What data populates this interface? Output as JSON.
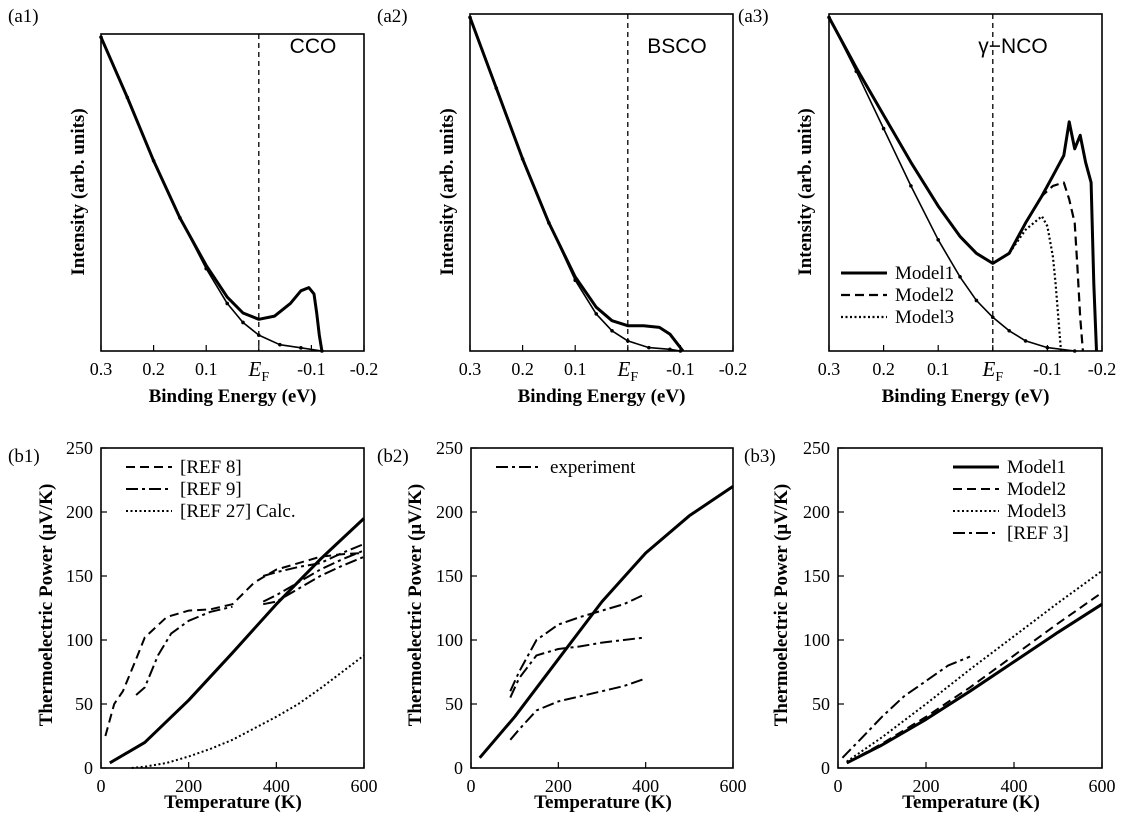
{
  "chart_data": [
    {
      "panel": "(a1)",
      "type": "line",
      "annotation": "CCO",
      "xlabel": "Binding Energy (eV)",
      "ylabel": "Intensity (arb. units)",
      "xlim": [
        0.3,
        -0.2
      ],
      "ylim": [
        0,
        1
      ],
      "x_ticks": [
        "0.3",
        "0.2",
        "0.1",
        "E_F",
        "-0.1",
        "-0.2"
      ],
      "fermi_level": 0,
      "series": [
        {
          "style": "solid",
          "width": 3,
          "x": [
            0.3,
            0.25,
            0.2,
            0.15,
            0.1,
            0.06,
            0.03,
            0.0,
            -0.03,
            -0.06,
            -0.08,
            -0.095,
            -0.105,
            -0.11,
            -0.115,
            -0.12
          ],
          "y": [
            0.99,
            0.8,
            0.6,
            0.42,
            0.27,
            0.17,
            0.12,
            0.1,
            0.11,
            0.15,
            0.19,
            0.2,
            0.18,
            0.12,
            0.05,
            0.0
          ]
        },
        {
          "style": "exp",
          "width": 1.6,
          "x": [
            0.3,
            0.25,
            0.2,
            0.15,
            0.1,
            0.06,
            0.03,
            0.0,
            -0.04,
            -0.08,
            -0.12
          ],
          "y": [
            0.99,
            0.8,
            0.6,
            0.42,
            0.26,
            0.15,
            0.09,
            0.05,
            0.02,
            0.01,
            0.0
          ]
        }
      ]
    },
    {
      "panel": "(a2)",
      "type": "line",
      "annotation": "BSCO",
      "xlabel": "Binding Energy (eV)",
      "ylabel": "Intensity (arb. units)",
      "xlim": [
        0.3,
        -0.2
      ],
      "ylim": [
        0,
        1
      ],
      "x_ticks": [
        "0.3",
        "0.2",
        "0.1",
        "E_F",
        "-0.1",
        "-0.2"
      ],
      "fermi_level": 0,
      "series": [
        {
          "style": "solid",
          "width": 3,
          "x": [
            0.3,
            0.25,
            0.2,
            0.15,
            0.1,
            0.06,
            0.03,
            0.0,
            -0.03,
            -0.06,
            -0.08,
            -0.095,
            -0.105
          ],
          "y": [
            0.99,
            0.78,
            0.57,
            0.38,
            0.22,
            0.13,
            0.09,
            0.075,
            0.075,
            0.07,
            0.05,
            0.02,
            0.0
          ]
        },
        {
          "style": "exp",
          "width": 1.6,
          "x": [
            0.3,
            0.25,
            0.2,
            0.15,
            0.1,
            0.06,
            0.03,
            0.0,
            -0.04,
            -0.08,
            -0.1
          ],
          "y": [
            0.99,
            0.78,
            0.57,
            0.38,
            0.21,
            0.11,
            0.06,
            0.03,
            0.01,
            0.005,
            0.0
          ]
        }
      ]
    },
    {
      "panel": "(a3)",
      "type": "line",
      "annotation": "γ−NCO",
      "xlabel": "Binding Energy (eV)",
      "ylabel": "Intensity (arb. units)",
      "xlim": [
        0.3,
        -0.2
      ],
      "ylim": [
        0,
        1
      ],
      "x_ticks": [
        "0.3",
        "0.2",
        "0.1",
        "E_F",
        "-0.1",
        "-0.2"
      ],
      "fermi_level": 0,
      "legend": [
        "Model1",
        "Model2",
        "Model3"
      ],
      "series": [
        {
          "name": "Model1",
          "style": "solid",
          "width": 3,
          "x": [
            0.3,
            0.25,
            0.2,
            0.15,
            0.1,
            0.06,
            0.03,
            0.0,
            -0.03,
            -0.06,
            -0.09,
            -0.11,
            -0.13,
            -0.14,
            -0.15,
            -0.16,
            -0.17,
            -0.18,
            -0.185,
            -0.19
          ],
          "y": [
            0.99,
            0.84,
            0.7,
            0.56,
            0.43,
            0.34,
            0.29,
            0.26,
            0.29,
            0.38,
            0.46,
            0.52,
            0.58,
            0.68,
            0.6,
            0.64,
            0.56,
            0.5,
            0.2,
            0.0
          ]
        },
        {
          "name": "Model2",
          "style": "dashed",
          "width": 2.2,
          "x": [
            0.06,
            0.03,
            0.0,
            -0.03,
            -0.06,
            -0.09,
            -0.11,
            -0.13,
            -0.14,
            -0.15,
            -0.155,
            -0.16,
            -0.165
          ],
          "y": [
            0.34,
            0.29,
            0.26,
            0.29,
            0.38,
            0.46,
            0.49,
            0.5,
            0.45,
            0.38,
            0.25,
            0.1,
            0.0
          ]
        },
        {
          "name": "Model3",
          "style": "dotted",
          "width": 2.2,
          "x": [
            0.06,
            0.03,
            0.0,
            -0.03,
            -0.06,
            -0.09,
            -0.1,
            -0.11,
            -0.115,
            -0.12,
            -0.125
          ],
          "y": [
            0.34,
            0.29,
            0.26,
            0.29,
            0.36,
            0.4,
            0.37,
            0.28,
            0.2,
            0.1,
            0.0
          ]
        },
        {
          "style": "exp",
          "width": 1.6,
          "x": [
            0.3,
            0.25,
            0.2,
            0.15,
            0.1,
            0.06,
            0.03,
            0.0,
            -0.03,
            -0.06,
            -0.1,
            -0.15
          ],
          "y": [
            0.99,
            0.83,
            0.66,
            0.49,
            0.33,
            0.22,
            0.15,
            0.1,
            0.06,
            0.03,
            0.01,
            0.0
          ]
        }
      ]
    },
    {
      "panel": "(b1)",
      "type": "line",
      "xlabel": "Temperature (K)",
      "ylabel": "Thermoelectric Power  (μV/K)",
      "xlim": [
        0,
        600
      ],
      "ylim": [
        0,
        250
      ],
      "x_ticks": [
        "0",
        "200",
        "400",
        "600"
      ],
      "y_ticks": [
        "0",
        "50",
        "100",
        "150",
        "200",
        "250"
      ],
      "legend": [
        "[REF 8]",
        "[REF 9]",
        "[REF 27] Calc."
      ],
      "series": [
        {
          "style": "solid",
          "width": 3,
          "x": [
            20,
            100,
            200,
            300,
            400,
            500,
            600
          ],
          "y": [
            4,
            20,
            53,
            90,
            128,
            163,
            195
          ]
        },
        {
          "name": "[REF 8]",
          "style": "dashed",
          "width": 2,
          "x": [
            10,
            30,
            50,
            80,
            100,
            150,
            200,
            250,
            300,
            350,
            400,
            450,
            500,
            550,
            600
          ],
          "y": [
            25,
            50,
            60,
            85,
            102,
            118,
            123,
            124,
            128,
            145,
            155,
            160,
            165,
            167,
            168
          ]
        },
        {
          "name": "[REF 9]",
          "style": "dashdot",
          "width": 2,
          "x": [
            80,
            100,
            130,
            160,
            200,
            250,
            300
          ],
          "y": [
            57,
            63,
            88,
            105,
            115,
            122,
            126
          ]
        },
        {
          "name": "[REF 9]",
          "style": "dashdot",
          "width": 2,
          "x": [
            370,
            400,
            450,
            500,
            550,
            600
          ],
          "y": [
            150,
            153,
            157,
            160,
            168,
            175
          ]
        },
        {
          "name": "[REF 9]",
          "style": "dashdot",
          "width": 2,
          "x": [
            370,
            400,
            450,
            500,
            550,
            600
          ],
          "y": [
            130,
            135,
            145,
            155,
            163,
            170
          ]
        },
        {
          "name": "[REF 9]",
          "style": "dashdot",
          "width": 2,
          "x": [
            370,
            400,
            450,
            500,
            550,
            600
          ],
          "y": [
            128,
            130,
            140,
            150,
            158,
            165
          ]
        },
        {
          "name": "[REF 27] Calc.",
          "style": "dotted",
          "width": 2,
          "x": [
            70,
            100,
            150,
            200,
            250,
            300,
            350,
            400,
            450,
            500,
            550,
            600
          ],
          "y": [
            0,
            1,
            4,
            9,
            15,
            22,
            31,
            40,
            50,
            62,
            75,
            88
          ]
        }
      ]
    },
    {
      "panel": "(b2)",
      "type": "line",
      "xlabel": "Temperature (K)",
      "ylabel": "Thermoelectric Power  (μV/K)",
      "xlim": [
        0,
        600
      ],
      "ylim": [
        0,
        250
      ],
      "x_ticks": [
        "0",
        "200",
        "400",
        "600"
      ],
      "y_ticks": [
        "0",
        "50",
        "100",
        "150",
        "200",
        "250"
      ],
      "legend": [
        "experiment"
      ],
      "series": [
        {
          "style": "solid",
          "width": 3,
          "x": [
            20,
            100,
            200,
            300,
            400,
            500,
            600
          ],
          "y": [
            8,
            40,
            85,
            130,
            168,
            197,
            220
          ]
        },
        {
          "name": "experiment",
          "style": "dashdot",
          "width": 2,
          "x": [
            90,
            110,
            150,
            200,
            250,
            300,
            350,
            400
          ],
          "y": [
            60,
            75,
            100,
            112,
            118,
            123,
            128,
            136
          ]
        },
        {
          "name": "experiment",
          "style": "dashdot",
          "width": 2,
          "x": [
            90,
            110,
            150,
            200,
            250,
            300,
            350,
            400
          ],
          "y": [
            55,
            70,
            88,
            93,
            95,
            98,
            100,
            102
          ]
        },
        {
          "name": "experiment",
          "style": "dashdot",
          "width": 2,
          "x": [
            90,
            110,
            150,
            200,
            250,
            300,
            350,
            400
          ],
          "y": [
            22,
            30,
            45,
            52,
            56,
            60,
            64,
            70
          ]
        }
      ]
    },
    {
      "panel": "(b3)",
      "type": "line",
      "xlabel": "Temperature (K)",
      "ylabel": "Thermoelectric Power  (μV/K)",
      "xlim": [
        0,
        600
      ],
      "ylim": [
        0,
        250
      ],
      "x_ticks": [
        "0",
        "200",
        "400",
        "600"
      ],
      "y_ticks": [
        "0",
        "50",
        "100",
        "150",
        "200",
        "250"
      ],
      "legend": [
        "Model1",
        "Model2",
        "Model3",
        "[REF 3]"
      ],
      "series": [
        {
          "name": "Model1",
          "style": "solid",
          "width": 3,
          "x": [
            20,
            100,
            200,
            300,
            400,
            500,
            600
          ],
          "y": [
            4,
            18,
            38,
            60,
            83,
            106,
            128
          ]
        },
        {
          "name": "Model2",
          "style": "dashed",
          "width": 2,
          "x": [
            20,
            100,
            200,
            300,
            400,
            500,
            600
          ],
          "y": [
            4,
            19,
            40,
            63,
            88,
            113,
            137
          ]
        },
        {
          "name": "Model3",
          "style": "dotted",
          "width": 2,
          "x": [
            20,
            100,
            200,
            300,
            400,
            500,
            600
          ],
          "y": [
            5,
            24,
            50,
            77,
            103,
            129,
            154
          ]
        },
        {
          "name": "[REF 3]",
          "style": "dashdot",
          "width": 2,
          "x": [
            10,
            50,
            100,
            150,
            200,
            250,
            300
          ],
          "y": [
            8,
            22,
            40,
            56,
            68,
            80,
            87
          ]
        }
      ]
    }
  ]
}
